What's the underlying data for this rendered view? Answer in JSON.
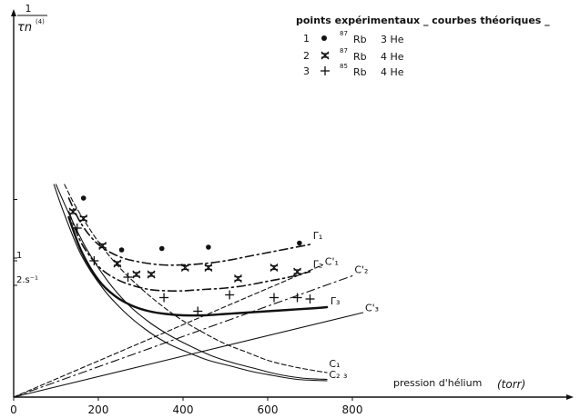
{
  "chart_data": {
    "type": "line",
    "ylabel_num": "1",
    "ylabel_den": "τn",
    "ylabel_sup": "(4)",
    "xlabel": "pression d'hélium",
    "xunit": "(torr)",
    "xlim": [
      0,
      850
    ],
    "ylim": [
      0,
      1.55
    ],
    "xticks": [
      0,
      200,
      400,
      600,
      800
    ],
    "yticks": [
      {
        "value": 1,
        "label": "1"
      },
      {
        "value": 1.02,
        "label": ""
      },
      {
        "value": 1.45,
        "label": ""
      },
      {
        "value": 0.82,
        "label": "2.s⁻¹"
      }
    ],
    "legend": {
      "title": "points expérimentaux _ courbes théoriques _",
      "rows": [
        {
          "num": "1",
          "marker": "dot",
          "iso": "87",
          "el": "Rb",
          "gas": "3 He"
        },
        {
          "num": "2",
          "marker": "star",
          "iso": "87",
          "el": "Rb",
          "gas": "4 He"
        },
        {
          "num": "3",
          "marker": "plus",
          "iso": "85",
          "el": "Rb",
          "gas": "4 He"
        }
      ]
    },
    "series": [
      {
        "name": "Γ1",
        "style": "dashdot",
        "width": 1.6,
        "x": [
          130,
          160,
          200,
          250,
          300,
          350,
          400,
          450,
          500,
          550,
          600,
          650,
          700
        ],
        "y": [
          1.46,
          1.27,
          1.12,
          1.03,
          0.99,
          0.97,
          0.97,
          0.98,
          1.0,
          1.03,
          1.06,
          1.09,
          1.12
        ]
      },
      {
        "name": "Γ2",
        "style": "dashdot",
        "width": 1.6,
        "x": [
          130,
          160,
          200,
          240,
          280,
          320,
          360,
          400,
          450,
          500,
          550,
          600,
          650,
          700
        ],
        "y": [
          1.36,
          1.13,
          0.96,
          0.87,
          0.82,
          0.79,
          0.78,
          0.78,
          0.79,
          0.8,
          0.82,
          0.85,
          0.88,
          0.92
        ]
      },
      {
        "name": "Γ3",
        "style": "solid",
        "width": 2.4,
        "x": [
          130,
          160,
          200,
          240,
          280,
          320,
          360,
          400,
          450,
          500,
          550,
          600,
          650,
          700,
          740
        ],
        "y": [
          1.32,
          1.07,
          0.86,
          0.74,
          0.67,
          0.63,
          0.61,
          0.6,
          0.6,
          0.61,
          0.62,
          0.63,
          0.64,
          0.65,
          0.66
        ]
      },
      {
        "name": "C'1",
        "style": "shortdash",
        "width": 1.1,
        "x": [
          0,
          730
        ],
        "y": [
          0.0,
          0.97
        ]
      },
      {
        "name": "C'2",
        "style": "dashdot",
        "width": 1.1,
        "x": [
          0,
          800
        ],
        "y": [
          0.0,
          0.89
        ]
      },
      {
        "name": "C'3",
        "style": "solid",
        "width": 1.1,
        "x": [
          0,
          825
        ],
        "y": [
          0.0,
          0.62
        ]
      },
      {
        "name": "C1",
        "style": "shortdash",
        "width": 1.1,
        "x": [
          120,
          150,
          200,
          250,
          300,
          350,
          400,
          450,
          500,
          550,
          600,
          650,
          700,
          740
        ],
        "y": [
          1.56,
          1.38,
          1.14,
          0.95,
          0.8,
          0.67,
          0.56,
          0.47,
          0.39,
          0.33,
          0.27,
          0.23,
          0.2,
          0.18
        ]
      },
      {
        "name": "C1-outer",
        "style": "solid",
        "width": 1.1,
        "x": [
          100,
          130,
          170,
          220,
          270,
          320,
          370,
          420,
          470,
          520,
          570,
          620,
          680,
          740
        ],
        "y": [
          1.56,
          1.35,
          1.1,
          0.86,
          0.68,
          0.55,
          0.45,
          0.37,
          0.3,
          0.25,
          0.21,
          0.17,
          0.14,
          0.13
        ]
      },
      {
        "name": "C2 3",
        "style": "solid",
        "width": 1.1,
        "x": [
          95,
          120,
          160,
          210,
          260,
          310,
          360,
          410,
          460,
          510,
          560,
          610,
          670,
          740
        ],
        "y": [
          1.56,
          1.34,
          1.04,
          0.8,
          0.63,
          0.5,
          0.4,
          0.33,
          0.27,
          0.23,
          0.19,
          0.16,
          0.13,
          0.12
        ]
      }
    ],
    "points": [
      {
        "marker": "dot",
        "x": 165,
        "y": 1.46
      },
      {
        "marker": "dot",
        "x": 255,
        "y": 1.08
      },
      {
        "marker": "dot",
        "x": 350,
        "y": 1.09
      },
      {
        "marker": "dot",
        "x": 460,
        "y": 1.1
      },
      {
        "marker": "dot",
        "x": 675,
        "y": 1.13
      },
      {
        "marker": "star",
        "x": 140,
        "y": 1.36
      },
      {
        "marker": "star",
        "x": 165,
        "y": 1.31
      },
      {
        "marker": "star",
        "x": 210,
        "y": 1.11
      },
      {
        "marker": "star",
        "x": 245,
        "y": 0.98
      },
      {
        "marker": "star",
        "x": 290,
        "y": 0.9
      },
      {
        "marker": "star",
        "x": 325,
        "y": 0.9
      },
      {
        "marker": "star",
        "x": 405,
        "y": 0.95
      },
      {
        "marker": "star",
        "x": 460,
        "y": 0.95
      },
      {
        "marker": "star",
        "x": 530,
        "y": 0.87
      },
      {
        "marker": "star",
        "x": 615,
        "y": 0.95
      },
      {
        "marker": "star",
        "x": 670,
        "y": 0.92
      },
      {
        "marker": "plus",
        "x": 150,
        "y": 1.24
      },
      {
        "marker": "plus",
        "x": 190,
        "y": 1.0
      },
      {
        "marker": "plus",
        "x": 270,
        "y": 0.88
      },
      {
        "marker": "plus",
        "x": 355,
        "y": 0.73
      },
      {
        "marker": "plus",
        "x": 435,
        "y": 0.63
      },
      {
        "marker": "plus",
        "x": 510,
        "y": 0.75
      },
      {
        "marker": "plus",
        "x": 615,
        "y": 0.73
      },
      {
        "marker": "plus",
        "x": 670,
        "y": 0.73
      },
      {
        "marker": "plus",
        "x": 700,
        "y": 0.72
      }
    ],
    "annotations": [
      {
        "id": "Γ1",
        "text": "Γ₁",
        "x": 707,
        "y": 1.16
      },
      {
        "id": "Γ2",
        "text": "Γ₂",
        "x": 707,
        "y": 0.95
      },
      {
        "id": "Γ3",
        "text": "Γ₃",
        "x": 748,
        "y": 0.68
      },
      {
        "id": "C'1",
        "text": "C'₁",
        "x": 735,
        "y": 0.97
      },
      {
        "id": "C'2",
        "text": "C'₂",
        "x": 805,
        "y": 0.91
      },
      {
        "id": "C'3",
        "text": "C'₃",
        "x": 830,
        "y": 0.63
      },
      {
        "id": "C1",
        "text": "C₁",
        "x": 745,
        "y": 0.22
      },
      {
        "id": "C23",
        "text": "C₂ ₃",
        "x": 745,
        "y": 0.14
      }
    ]
  }
}
